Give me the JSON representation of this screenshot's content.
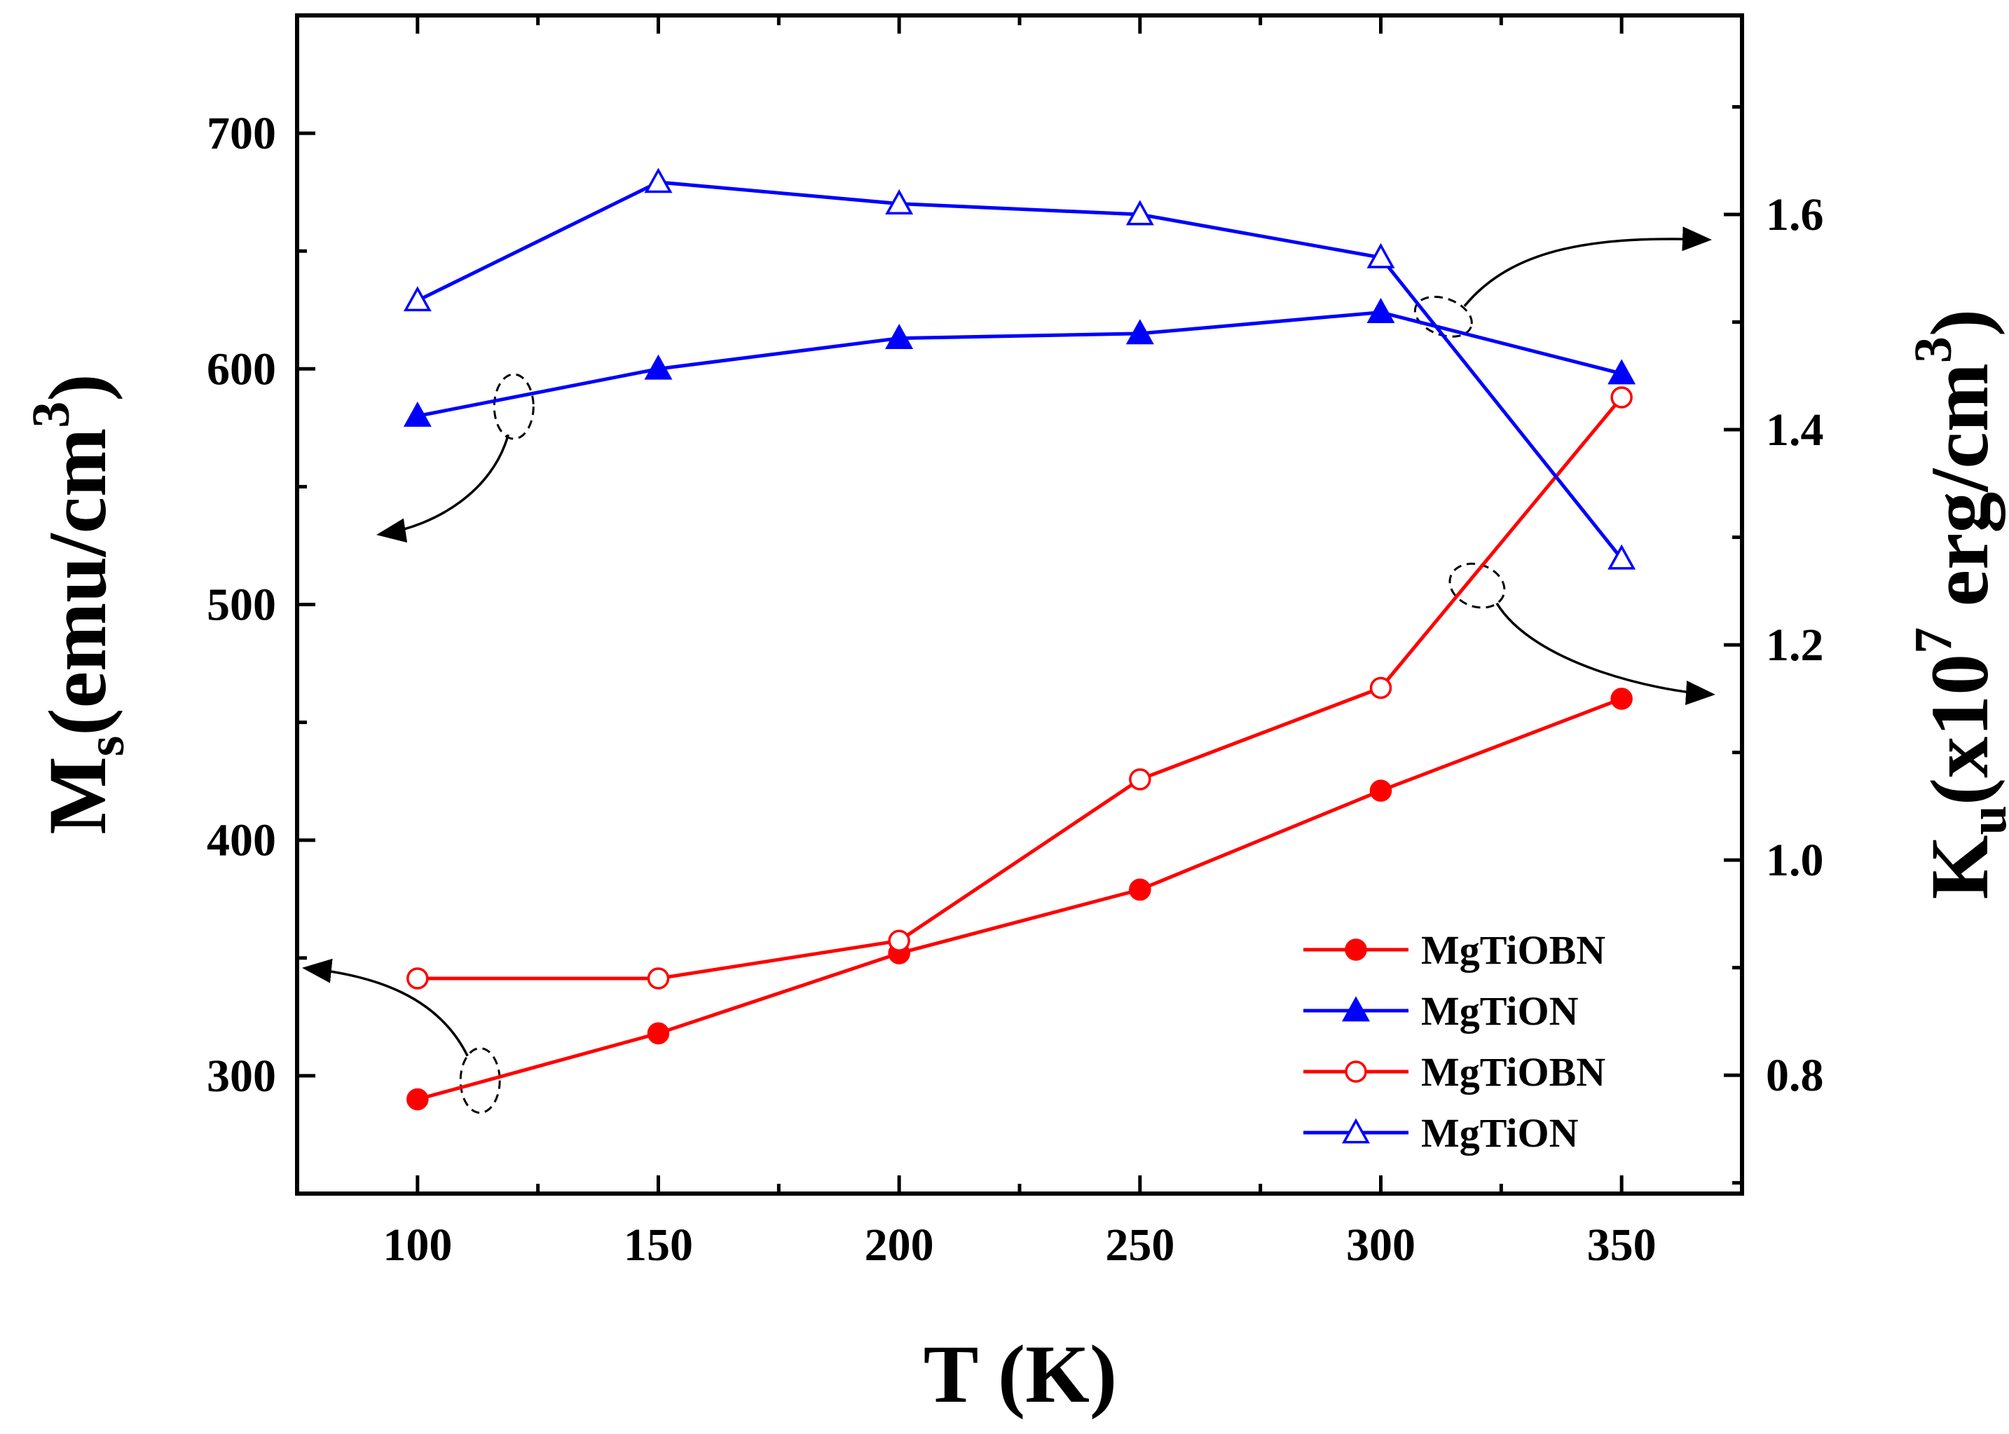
{
  "chart_data": {
    "type": "line",
    "x": [
      100,
      150,
      200,
      250,
      300,
      350
    ],
    "xlabel": "T (K)",
    "xlim": [
      75,
      375
    ],
    "xticks": [
      100,
      150,
      200,
      250,
      300,
      350
    ],
    "ylabel_left": {
      "main": "M",
      "sub": "s",
      "rest": "(emu/cm",
      "sup": "3",
      "close": ")"
    },
    "ylabel_right": {
      "main": "K",
      "sub": "u",
      "rest1": "(x10",
      "sup1": "7",
      "rest2": " erg/cm",
      "sup2": "3",
      "close": ")"
    },
    "ylim_left": [
      250,
      750
    ],
    "yticks_left": [
      300,
      400,
      500,
      600,
      700
    ],
    "ylim_right": [
      0.69,
      1.785
    ],
    "yticks_right": [
      "0.8",
      "1.0",
      "1.2",
      "1.4",
      "1.6"
    ],
    "series": [
      {
        "name": "MgTiOBN",
        "axis": "left",
        "marker": "circle",
        "filled": true,
        "color": "#ff0000",
        "values": [
          290,
          318,
          352,
          379,
          421,
          460
        ]
      },
      {
        "name": "MgTiON",
        "axis": "left",
        "marker": "triangle",
        "filled": true,
        "color": "#0000ff",
        "values": [
          580,
          600,
          613,
          615,
          624,
          598
        ]
      },
      {
        "name": "MgTiOBN",
        "axis": "right",
        "marker": "circle",
        "filled": false,
        "color": "#ff0000",
        "values": [
          0.89,
          0.89,
          0.925,
          1.075,
          1.16,
          1.43
        ]
      },
      {
        "name": "MgTiON",
        "axis": "right",
        "marker": "triangle",
        "filled": false,
        "color": "#0000ff",
        "values": [
          1.52,
          1.63,
          1.61,
          1.6,
          1.56,
          1.28
        ]
      }
    ],
    "legend_position": "lower-right",
    "annotations": [
      "dashed ellipse on filled red series near T=113 with arrow to left axis",
      "dashed ellipse on filled blue series near T=120 with arrow to left axis",
      "dashed ellipse on open blue series near T=312 with arrow to right axis",
      "dashed ellipse on open red series near T=320 with arrow to right axis"
    ]
  }
}
